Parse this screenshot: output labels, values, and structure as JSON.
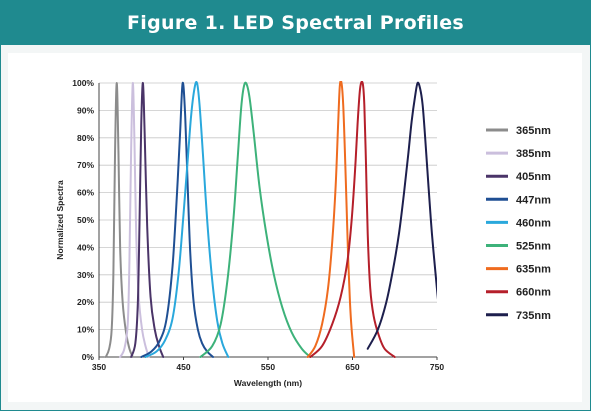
{
  "header": {
    "title": "Figure 1. LED Spectral Profiles"
  },
  "chart_data": {
    "type": "line",
    "title": "Figure 1. LED Spectral Profiles",
    "xlabel": "Wavelength (nm)",
    "ylabel": "Normalized Spectra",
    "xlim": [
      350,
      750
    ],
    "ylim": [
      0,
      100
    ],
    "x_ticks": [
      350,
      450,
      550,
      650,
      750
    ],
    "y_ticks": [
      "0%",
      "10%",
      "20%",
      "30%",
      "40%",
      "50%",
      "60%",
      "70%",
      "80%",
      "90%",
      "100%"
    ],
    "grid": "horizontal",
    "legend_position": "right",
    "series": [
      {
        "name": "365nm",
        "color": "#8c8c8c",
        "x": [
          358,
          362,
          365,
          367,
          369,
          371,
          373,
          375,
          378,
          382,
          386,
          390
        ],
        "y": [
          0,
          3,
          10,
          30,
          75,
          100,
          75,
          40,
          20,
          9,
          3,
          0
        ]
      },
      {
        "name": "385nm",
        "color": "#cbbfdd",
        "x": [
          375,
          380,
          384,
          386,
          388,
          390,
          392,
          394,
          397,
          401,
          405,
          409
        ],
        "y": [
          0,
          3,
          12,
          35,
          75,
          100,
          78,
          45,
          22,
          10,
          4,
          0
        ]
      },
      {
        "name": "405nm",
        "color": "#4a3468",
        "x": [
          388,
          393,
          396,
          398,
          400,
          402,
          404,
          407,
          411,
          416,
          421,
          426
        ],
        "y": [
          0,
          5,
          20,
          50,
          85,
          100,
          82,
          48,
          22,
          10,
          4,
          0
        ]
      },
      {
        "name": "447nm",
        "color": "#1f4f93",
        "x": [
          400,
          412,
          422,
          430,
          437,
          442,
          446,
          449,
          452,
          455,
          458,
          462,
          467,
          472,
          478,
          485
        ],
        "y": [
          0,
          2,
          6,
          14,
          33,
          58,
          82,
          100,
          88,
          62,
          38,
          20,
          10,
          5,
          2,
          0
        ]
      },
      {
        "name": "460nm",
        "color": "#2aa8dc",
        "x": [
          405,
          418,
          428,
          437,
          444,
          450,
          455,
          459,
          463,
          466,
          469,
          473,
          478,
          484,
          490,
          496,
          503
        ],
        "y": [
          0,
          2,
          6,
          14,
          30,
          52,
          72,
          88,
          98,
          100,
          92,
          74,
          50,
          28,
          13,
          5,
          0
        ]
      },
      {
        "name": "525nm",
        "color": "#3db27a",
        "x": [
          470,
          484,
          494,
          502,
          509,
          514,
          518,
          521,
          524,
          528,
          533,
          540,
          548,
          557,
          567,
          578,
          590,
          600
        ],
        "y": [
          0,
          4,
          12,
          28,
          50,
          72,
          90,
          98,
          100,
          95,
          82,
          62,
          45,
          30,
          18,
          9,
          3,
          0
        ]
      },
      {
        "name": "635nm",
        "color": "#ef6b1f",
        "x": [
          597,
          606,
          614,
          621,
          626,
          630,
          633,
          635,
          637,
          639,
          641,
          643,
          645,
          647,
          649,
          652
        ],
        "y": [
          0,
          4,
          12,
          25,
          42,
          62,
          85,
          99,
          100,
          92,
          75,
          55,
          35,
          20,
          10,
          0
        ]
      },
      {
        "name": "660nm",
        "color": "#b51f2a",
        "x": [
          600,
          614,
          626,
          636,
          644,
          649,
          653,
          656,
          659,
          662,
          664,
          666,
          668,
          671,
          675,
          681,
          688,
          700
        ],
        "y": [
          0,
          4,
          12,
          22,
          35,
          50,
          68,
          85,
          98,
          100,
          92,
          70,
          45,
          25,
          15,
          8,
          3,
          0
        ]
      },
      {
        "name": "735nm",
        "color": "#1d1f4d",
        "x": [
          668,
          680,
          690,
          698,
          705,
          711,
          716,
          720,
          724,
          727,
          730,
          733,
          736,
          740,
          744,
          749,
          753
        ],
        "y": [
          3,
          10,
          20,
          32,
          45,
          60,
          74,
          86,
          95,
          100,
          98,
          92,
          80,
          62,
          45,
          28,
          15
        ]
      }
    ]
  }
}
